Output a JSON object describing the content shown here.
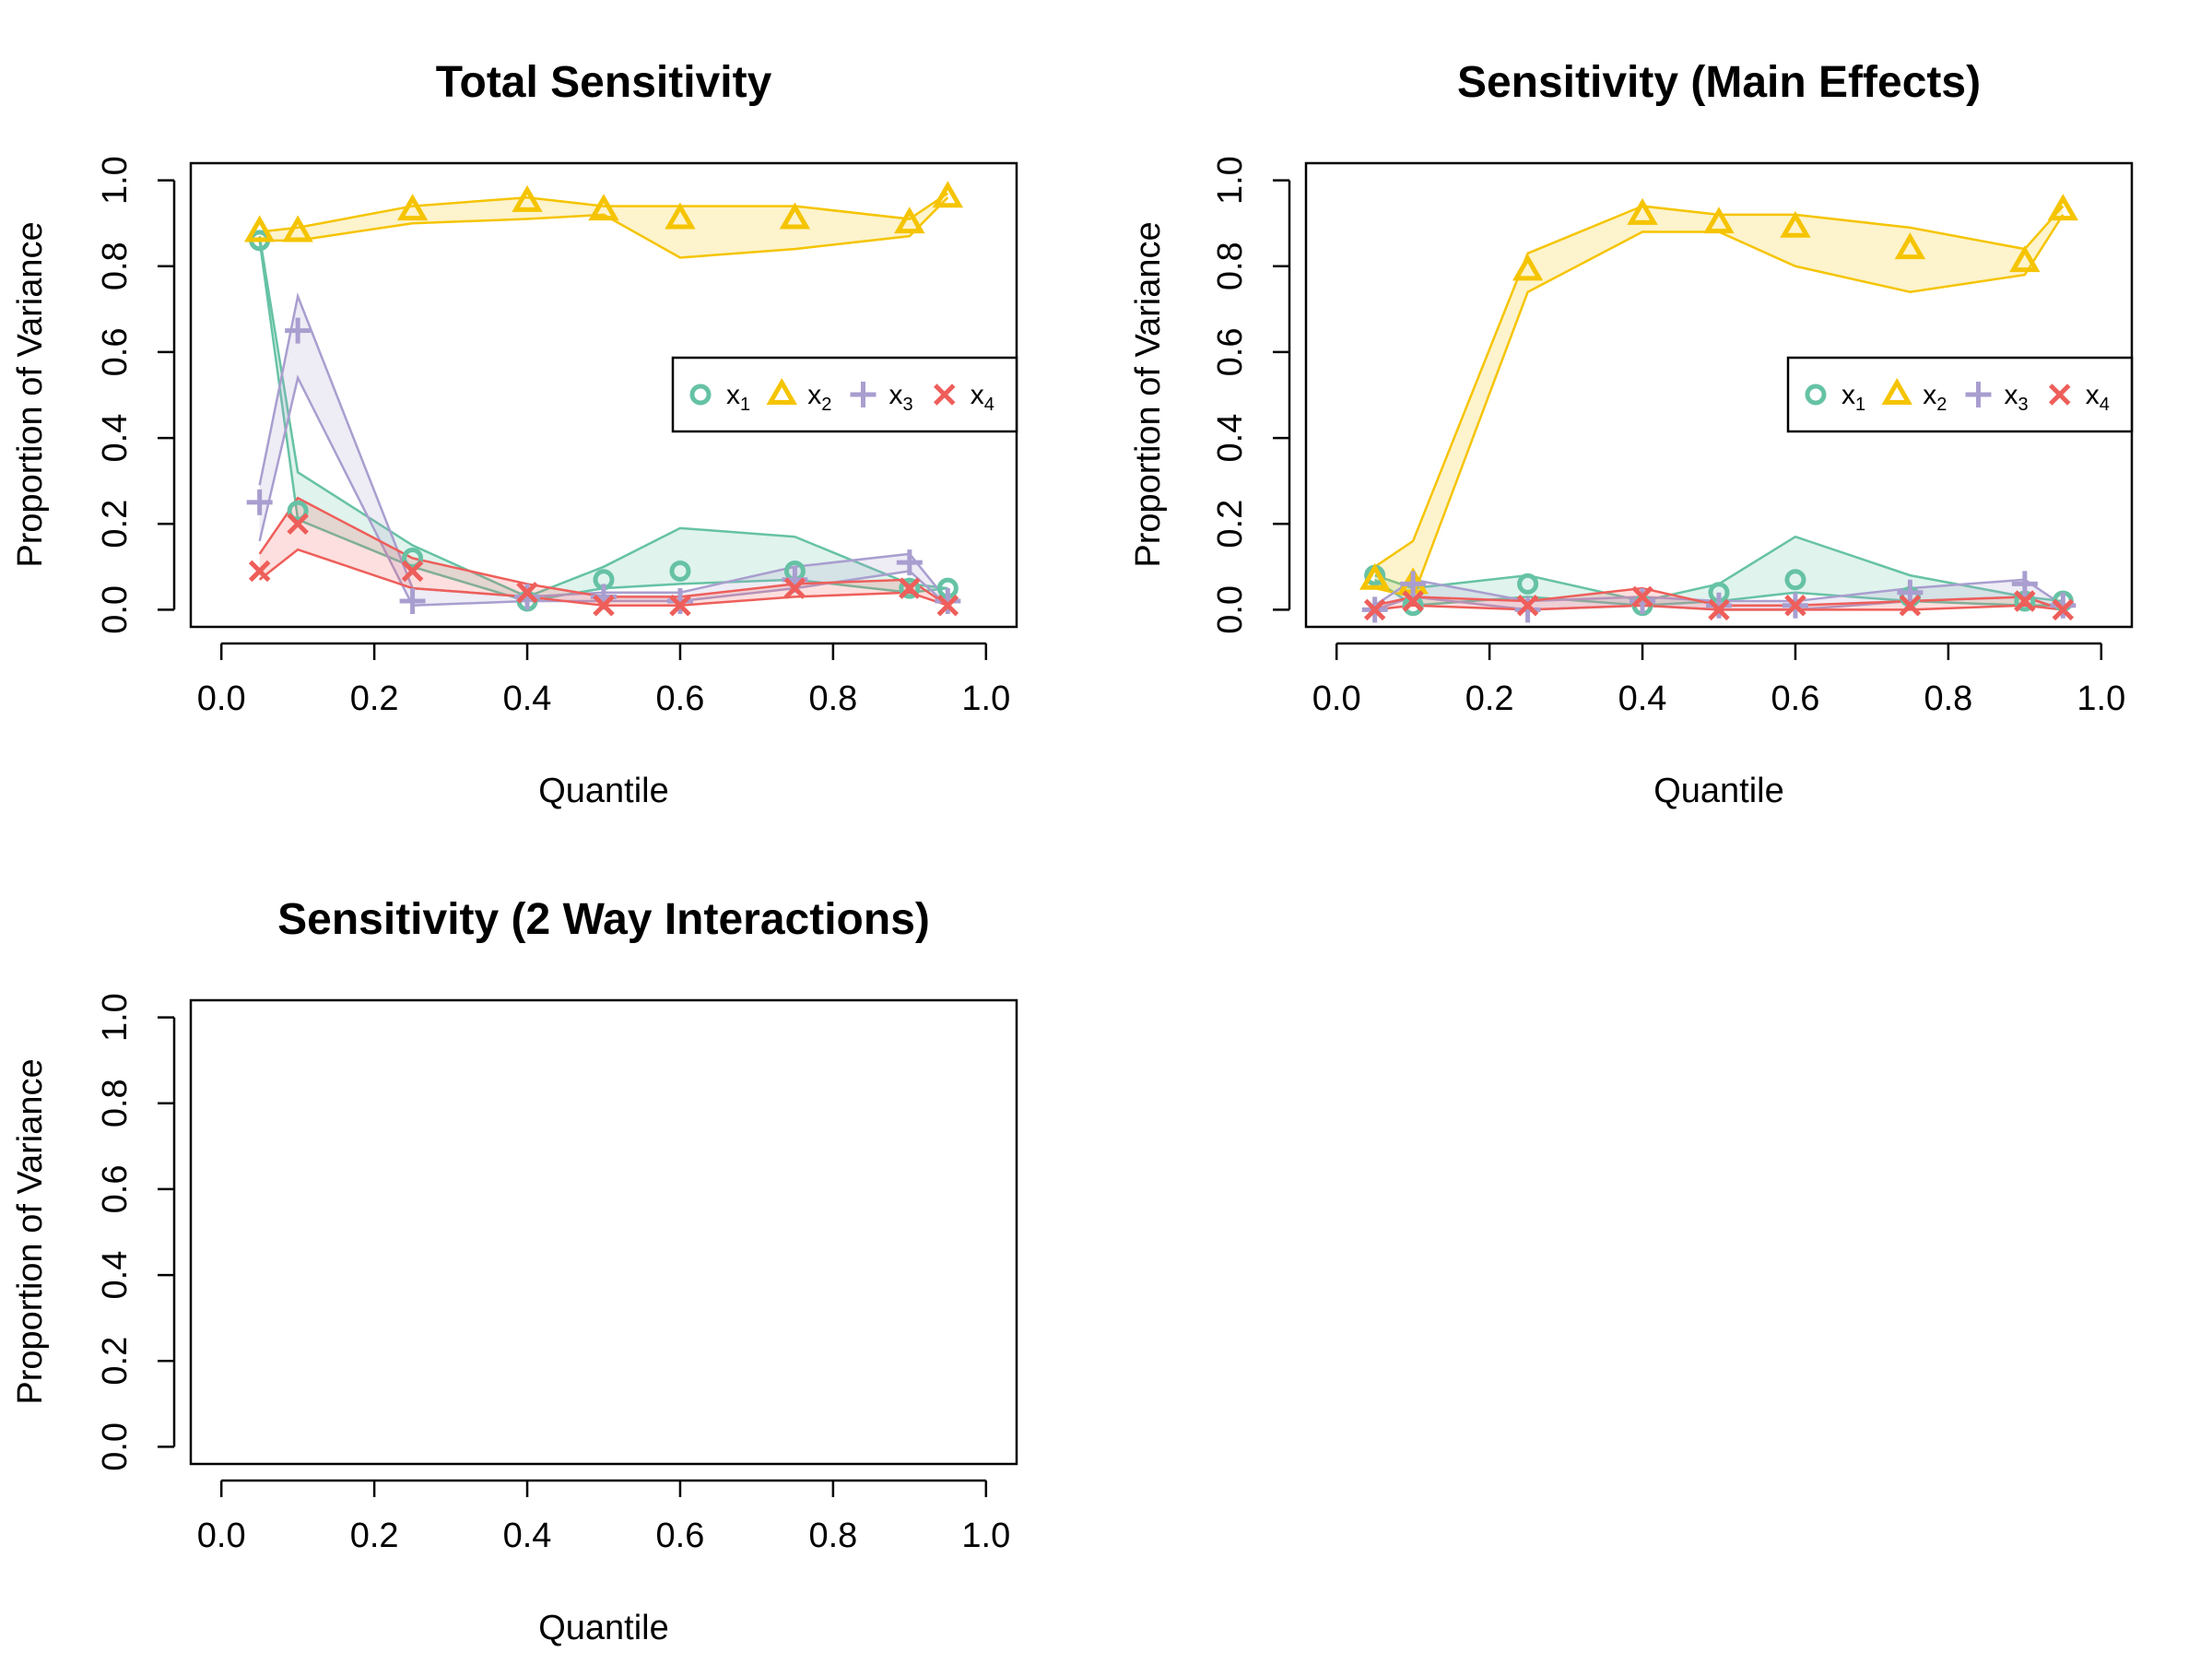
{
  "colors": {
    "x1": "#66C2A5",
    "x2": "#F5C400",
    "x3": "#A99ECF",
    "x4": "#EE5E5A",
    "axis": "#000000"
  },
  "chart_data": [
    {
      "type": "line",
      "title": "Total Sensitivity",
      "xlabel": "Quantile",
      "ylabel": "Proportion of Variance",
      "xlim": [
        0,
        1
      ],
      "ylim": [
        0,
        1
      ],
      "x_ticks": [
        "0.0",
        "0.2",
        "0.4",
        "0.6",
        "0.8",
        "1.0"
      ],
      "y_ticks": [
        "0.0",
        "0.2",
        "0.4",
        "0.6",
        "0.8",
        "1.0"
      ],
      "legend": {
        "placement": "right"
      },
      "x": [
        0.05,
        0.1,
        0.25,
        0.4,
        0.5,
        0.6,
        0.75,
        0.9,
        0.95
      ],
      "series": [
        {
          "name": "x1",
          "sub": "1",
          "marker": "circle",
          "values": [
            0.86,
            0.23,
            0.12,
            0.02,
            0.07,
            0.09,
            0.09,
            0.05,
            0.05
          ],
          "upper": [
            0.87,
            0.32,
            0.15,
            0.03,
            0.1,
            0.19,
            0.17,
            0.06,
            0.05
          ],
          "lower": [
            0.86,
            0.21,
            0.1,
            0.02,
            0.05,
            0.06,
            0.07,
            0.04,
            0.05
          ]
        },
        {
          "name": "x2",
          "sub": "2",
          "marker": "triangle",
          "values": [
            0.88,
            0.88,
            0.93,
            0.95,
            0.93,
            0.91,
            0.91,
            0.9,
            0.96
          ],
          "upper": [
            0.88,
            0.89,
            0.94,
            0.96,
            0.94,
            0.94,
            0.94,
            0.91,
            0.97
          ],
          "lower": [
            0.86,
            0.86,
            0.9,
            0.91,
            0.92,
            0.82,
            0.84,
            0.87,
            0.96
          ]
        },
        {
          "name": "x3",
          "sub": "3",
          "marker": "plus",
          "values": [
            0.25,
            0.65,
            0.02,
            0.03,
            0.03,
            0.02,
            0.07,
            0.11,
            0.02
          ],
          "upper": [
            0.29,
            0.73,
            0.05,
            0.03,
            0.04,
            0.04,
            0.1,
            0.13,
            0.02
          ],
          "lower": [
            0.16,
            0.54,
            0.01,
            0.02,
            0.02,
            0.02,
            0.05,
            0.09,
            0.01
          ]
        },
        {
          "name": "x4",
          "sub": "4",
          "marker": "cross",
          "values": [
            0.09,
            0.2,
            0.09,
            0.04,
            0.01,
            0.01,
            0.05,
            0.05,
            0.01
          ],
          "upper": [
            0.13,
            0.26,
            0.12,
            0.06,
            0.03,
            0.03,
            0.06,
            0.07,
            0.01
          ],
          "lower": [
            0.07,
            0.14,
            0.05,
            0.03,
            0.01,
            0.01,
            0.03,
            0.04,
            0.01
          ]
        }
      ]
    },
    {
      "type": "line",
      "title": "Sensitivity (Main Effects)",
      "xlabel": "Quantile",
      "ylabel": "Proportion of Variance",
      "xlim": [
        0,
        1
      ],
      "ylim": [
        0,
        1
      ],
      "x_ticks": [
        "0.0",
        "0.2",
        "0.4",
        "0.6",
        "0.8",
        "1.0"
      ],
      "y_ticks": [
        "0.0",
        "0.2",
        "0.4",
        "0.6",
        "0.8",
        "1.0"
      ],
      "legend": {
        "placement": "right"
      },
      "x": [
        0.05,
        0.1,
        0.25,
        0.4,
        0.5,
        0.6,
        0.75,
        0.9,
        0.95
      ],
      "series": [
        {
          "name": "x1",
          "sub": "1",
          "marker": "circle",
          "values": [
            0.08,
            0.01,
            0.06,
            0.01,
            0.04,
            0.07,
            0.03,
            0.02,
            0.02
          ],
          "upper": [
            0.08,
            0.05,
            0.08,
            0.02,
            0.06,
            0.17,
            0.08,
            0.03,
            0.02
          ],
          "lower": [
            0.07,
            0.01,
            0.03,
            0.01,
            0.02,
            0.04,
            0.02,
            0.01,
            0.01
          ]
        },
        {
          "name": "x2",
          "sub": "2",
          "marker": "triangle",
          "values": [
            0.07,
            0.06,
            0.79,
            0.92,
            0.9,
            0.89,
            0.84,
            0.81,
            0.93
          ],
          "upper": [
            0.1,
            0.16,
            0.83,
            0.94,
            0.92,
            0.92,
            0.89,
            0.84,
            0.94
          ],
          "lower": [
            0.05,
            0.03,
            0.74,
            0.88,
            0.88,
            0.8,
            0.74,
            0.78,
            0.92
          ]
        },
        {
          "name": "x3",
          "sub": "3",
          "marker": "plus",
          "values": [
            0.0,
            0.06,
            0.0,
            0.02,
            0.01,
            0.01,
            0.04,
            0.06,
            0.01
          ],
          "upper": [
            0.01,
            0.07,
            0.02,
            0.03,
            0.02,
            0.02,
            0.05,
            0.07,
            0.01
          ],
          "lower": [
            0.0,
            0.03,
            0.0,
            0.01,
            0.0,
            0.0,
            0.02,
            0.03,
            0.0
          ]
        },
        {
          "name": "x4",
          "sub": "4",
          "marker": "cross",
          "values": [
            0.0,
            0.02,
            0.01,
            0.03,
            0.0,
            0.01,
            0.01,
            0.02,
            0.0
          ],
          "upper": [
            0.01,
            0.03,
            0.02,
            0.05,
            0.01,
            0.01,
            0.02,
            0.03,
            0.0
          ],
          "lower": [
            0.0,
            0.01,
            0.0,
            0.01,
            0.0,
            0.0,
            0.0,
            0.01,
            0.0
          ]
        }
      ]
    },
    {
      "type": "line",
      "title": "Sensitivity (2 Way Interactions)",
      "xlabel": "Quantile",
      "ylabel": "Proportion of Variance",
      "xlim": [
        0,
        1
      ],
      "ylim": [
        0,
        1
      ],
      "x_ticks": [
        "0.0",
        "0.2",
        "0.4",
        "0.6",
        "0.8",
        "1.0"
      ],
      "y_ticks": [
        "0.0",
        "0.2",
        "0.4",
        "0.6",
        "0.8",
        "1.0"
      ],
      "x": [],
      "series": []
    }
  ]
}
